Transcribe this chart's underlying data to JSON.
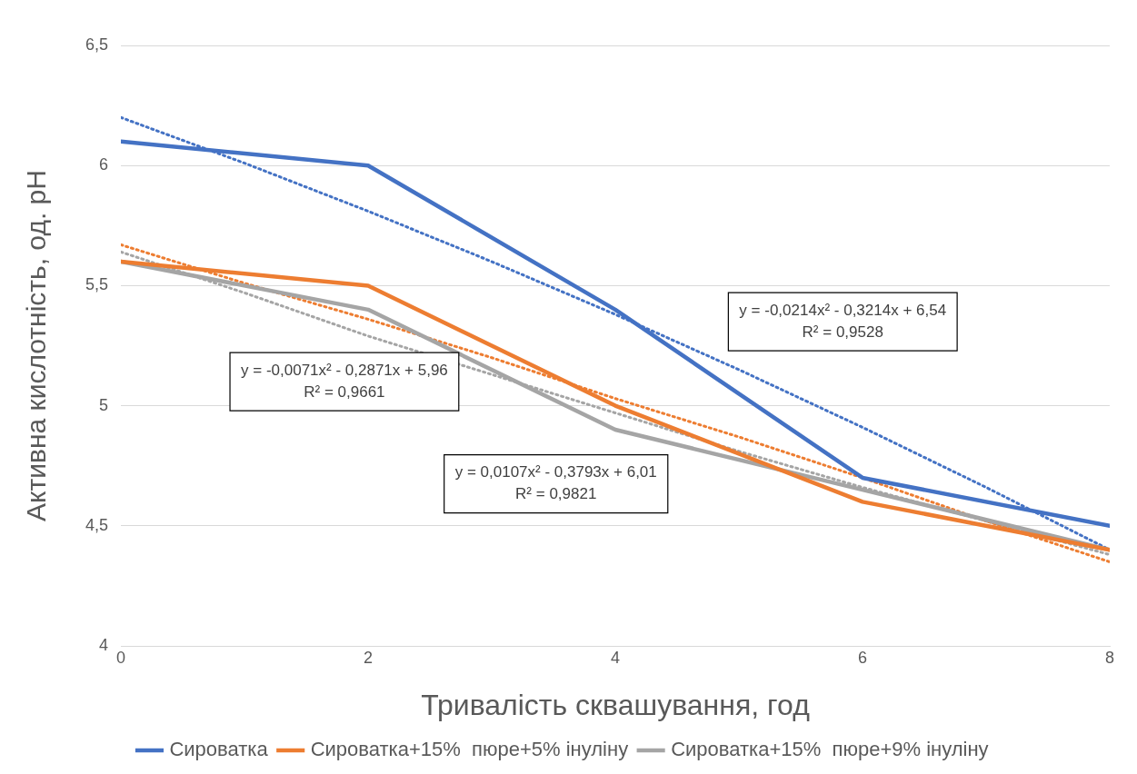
{
  "chart_data": {
    "type": "line",
    "xlabel": "Тривалість сквашування, год",
    "ylabel": "Активна кислотність, од. pH",
    "x": [
      0,
      2,
      4,
      6,
      8
    ],
    "xlim": [
      0,
      8
    ],
    "xticks": [
      0,
      2,
      4,
      6,
      8
    ],
    "ylim": [
      4,
      6.5
    ],
    "yticks": [
      4,
      {
        "value": 4.5,
        "label": "4,5"
      },
      5,
      {
        "value": 5.5,
        "label": "5,5"
      },
      6,
      {
        "value": 6.5,
        "label": "6,5"
      }
    ],
    "grid": "y",
    "legend": "bottom",
    "marker": "none",
    "line_style": "solid",
    "series": [
      {
        "name": "Сироватка",
        "color": "#4472c4",
        "values": [
          6.1,
          6.0,
          5.4,
          4.7,
          4.5
        ]
      },
      {
        "name": "Сироватка+15%  пюре+5% інуліну",
        "color": "#ed7d31",
        "values": [
          5.6,
          5.5,
          5.0,
          4.6,
          4.4
        ]
      },
      {
        "name": "Сироватка+15%  пюре+9% інуліну",
        "color": "#a5a5a5",
        "values": [
          5.6,
          5.4,
          4.9,
          4.65,
          4.4
        ]
      },
      {
        "type": "line",
        "line_style": "dotted",
        "color": "#4472c4",
        "x": [
          0,
          1,
          2,
          3,
          4,
          5,
          6,
          7,
          8
        ],
        "values": [
          6.2,
          6.01,
          5.81,
          5.6,
          5.38,
          5.15,
          4.91,
          4.66,
          4.4
        ]
      },
      {
        "type": "line",
        "line_style": "dotted",
        "color": "#ed7d31",
        "x": [
          0,
          1,
          2,
          3,
          4,
          5,
          6,
          7,
          8
        ],
        "values": [
          5.67,
          5.51,
          5.36,
          5.2,
          5.03,
          4.87,
          4.7,
          4.52,
          4.35
        ]
      },
      {
        "type": "line",
        "line_style": "dotted",
        "color": "#a5a5a5",
        "x": [
          0,
          1,
          2,
          3,
          4,
          5,
          6,
          7,
          8
        ],
        "values": [
          5.64,
          5.47,
          5.29,
          5.13,
          4.97,
          4.81,
          4.66,
          4.52,
          4.38
        ]
      }
    ],
    "annotations": [
      "y = -0,0214x² - 0,3214x + 6,54\nR² = 0,9528",
      "y = -0,0071x² - 0,2871x + 5,96\nR² = 0,9661",
      "y = 0,0107x² - 0,3793x + 6,01\nR² = 0,9821"
    ]
  }
}
